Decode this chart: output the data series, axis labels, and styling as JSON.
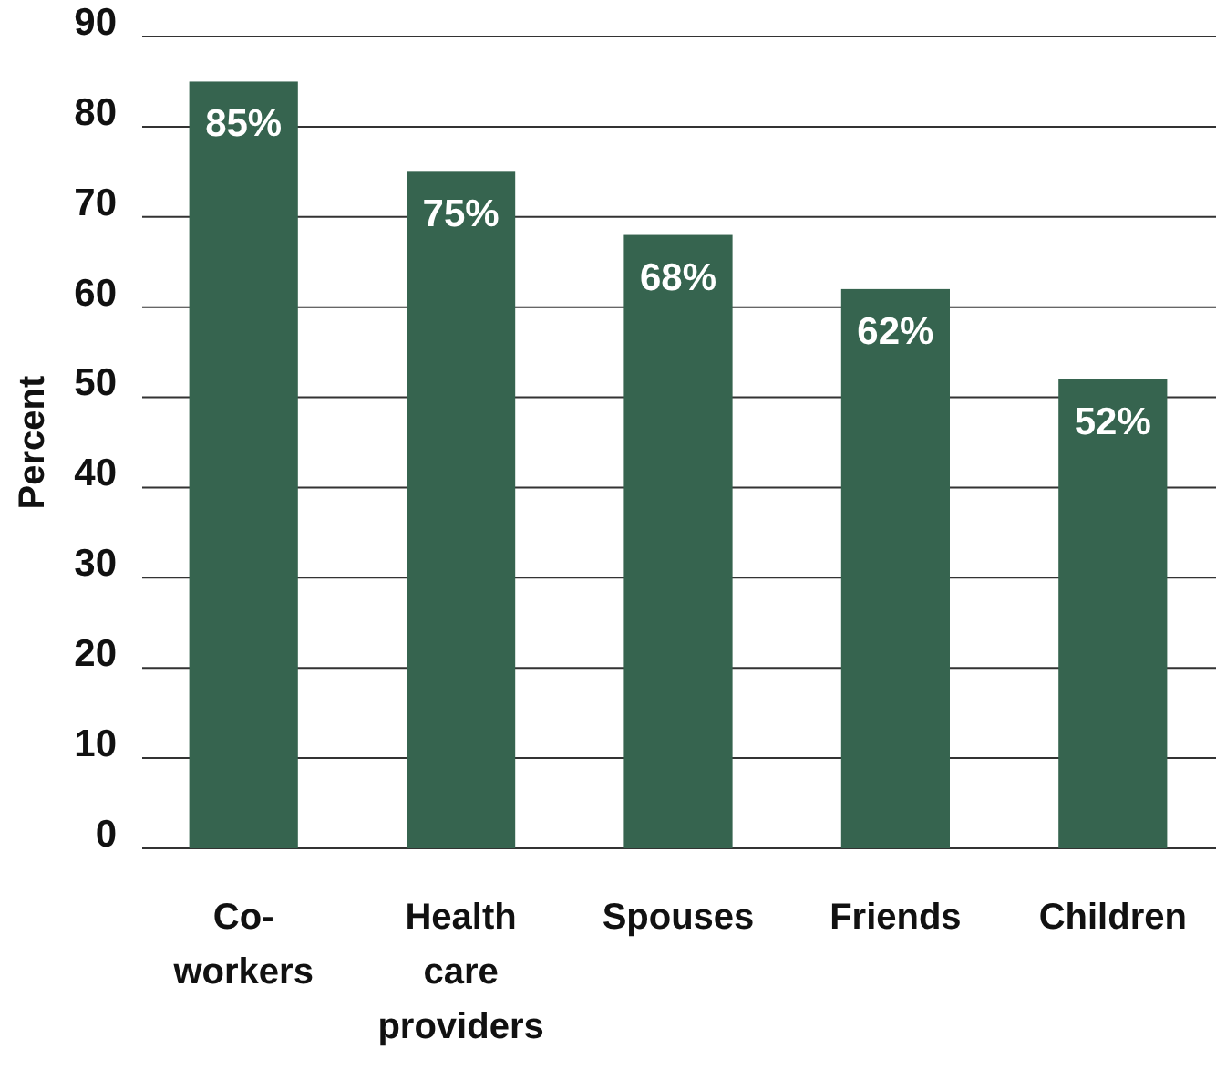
{
  "chart_data": {
    "type": "bar",
    "ylabel": "Percent",
    "categories": [
      "Co-workers",
      "Health care providers",
      "Spouses",
      "Friends",
      "Children"
    ],
    "values": [
      85,
      75,
      68,
      62,
      52
    ],
    "color": "#36644f",
    "value_labels": [
      "85%",
      "75%",
      "68%",
      "62%",
      "52%"
    ],
    "ylim": [
      0,
      90
    ],
    "yticks": [
      0,
      10,
      20,
      30,
      40,
      50,
      60,
      70,
      80,
      90
    ],
    "grid": "y"
  }
}
